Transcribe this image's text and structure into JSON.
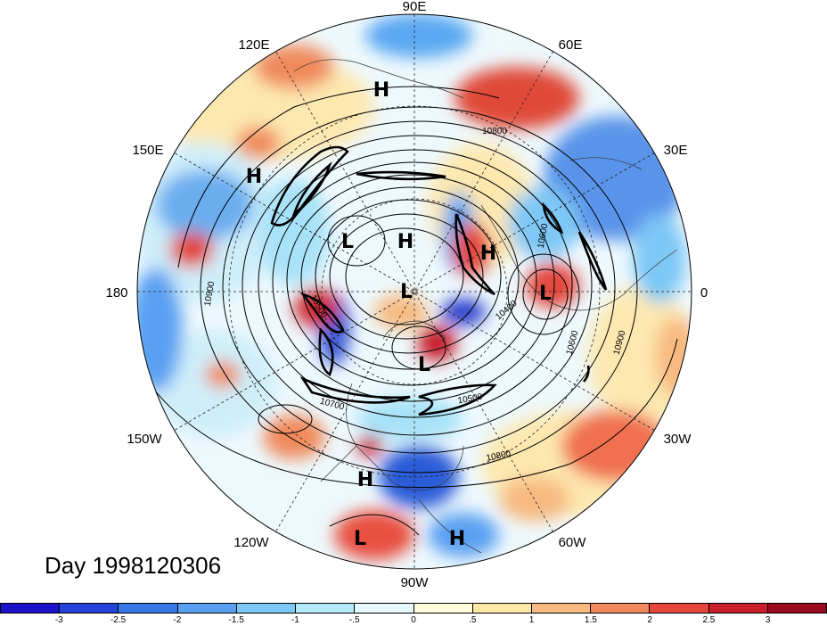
{
  "map": {
    "title": "Day 1998120306",
    "projection": "polar stereographic (northern hemisphere)",
    "longitude_labels": [
      "90E",
      "60E",
      "30E",
      "0",
      "30W",
      "60W",
      "90W",
      "120W",
      "150W",
      "180",
      "150E",
      "120E"
    ],
    "pressure_systems": [
      {
        "type": "H",
        "region": "northern Siberia"
      },
      {
        "type": "H",
        "region": "north Pacific"
      },
      {
        "type": "L",
        "region": "Chukchi / Arctic"
      },
      {
        "type": "H",
        "region": "north pole"
      },
      {
        "type": "L",
        "region": "Arctic basin"
      },
      {
        "type": "H",
        "region": "Scandinavia / Barents"
      },
      {
        "type": "L",
        "region": "western Europe"
      },
      {
        "type": "L",
        "region": "Greenland / Labrador"
      },
      {
        "type": "H",
        "region": "southern United States"
      },
      {
        "type": "L",
        "region": "eastern Pacific"
      },
      {
        "type": "H",
        "region": "Caribbean"
      }
    ],
    "contour_labels": [
      "10800",
      "10600",
      "10500",
      "10900",
      "10700",
      "10800",
      "10900",
      "10600",
      "10500",
      "10400"
    ]
  },
  "colorbar": {
    "levels": [
      "-3",
      "-2.5",
      "-2",
      "-1.5",
      "-1",
      "-.5",
      "0",
      ".5",
      "1",
      "1.5",
      "2",
      "2.5",
      "3"
    ],
    "colors": [
      "#1a12c8",
      "#2442d8",
      "#3878e6",
      "#5aa0f2",
      "#7ec8f6",
      "#b4ecfa",
      "#e4fafe",
      "#fffbdc",
      "#fde8a8",
      "#f8ba80",
      "#f08a5c",
      "#e4463e",
      "#c81e2c",
      "#9a0a1e"
    ]
  }
}
